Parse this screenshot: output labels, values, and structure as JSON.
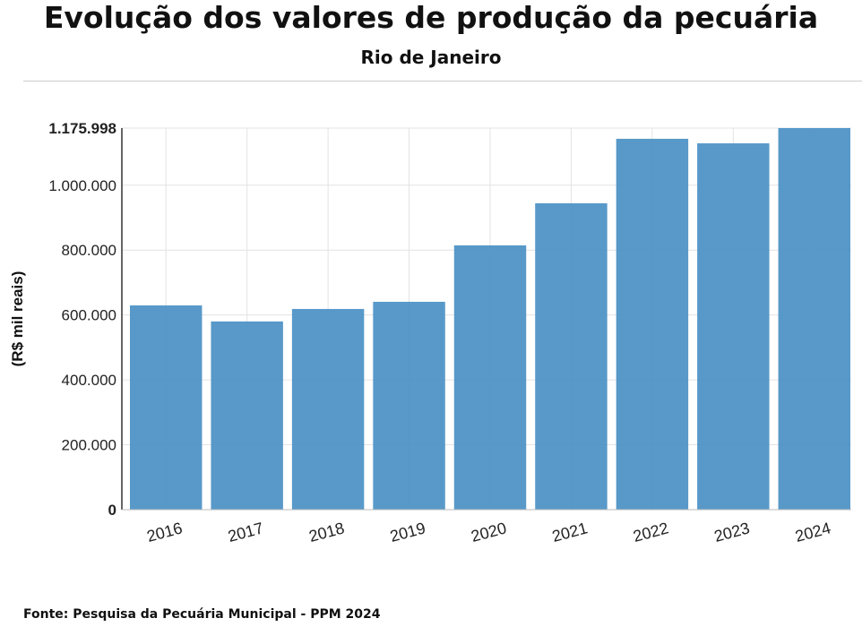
{
  "chart_data": {
    "type": "bar",
    "title": "Evolução dos valores de produção da pecuária",
    "subtitle": "Rio de Janeiro",
    "xlabel": "",
    "ylabel": "(R$ mil reais)",
    "categories": [
      "2016",
      "2017",
      "2018",
      "2019",
      "2020",
      "2021",
      "2022",
      "2023",
      "2024"
    ],
    "values": [
      629500,
      580000,
      618500,
      640600,
      814500,
      944300,
      1143000,
      1129000,
      1175998
    ],
    "ylim": [
      0,
      1175998
    ],
    "yticks": [
      0,
      200000,
      400000,
      600000,
      800000,
      1000000,
      1175998
    ],
    "ytick_labels": [
      "0",
      "200.000",
      "400.000",
      "600.000",
      "800.000",
      "1.000.000",
      "1.175.998"
    ],
    "grid": true,
    "bar_color": "#4a90c4"
  },
  "source": "Fonte: Pesquisa da Pecuária Municipal - PPM 2024"
}
